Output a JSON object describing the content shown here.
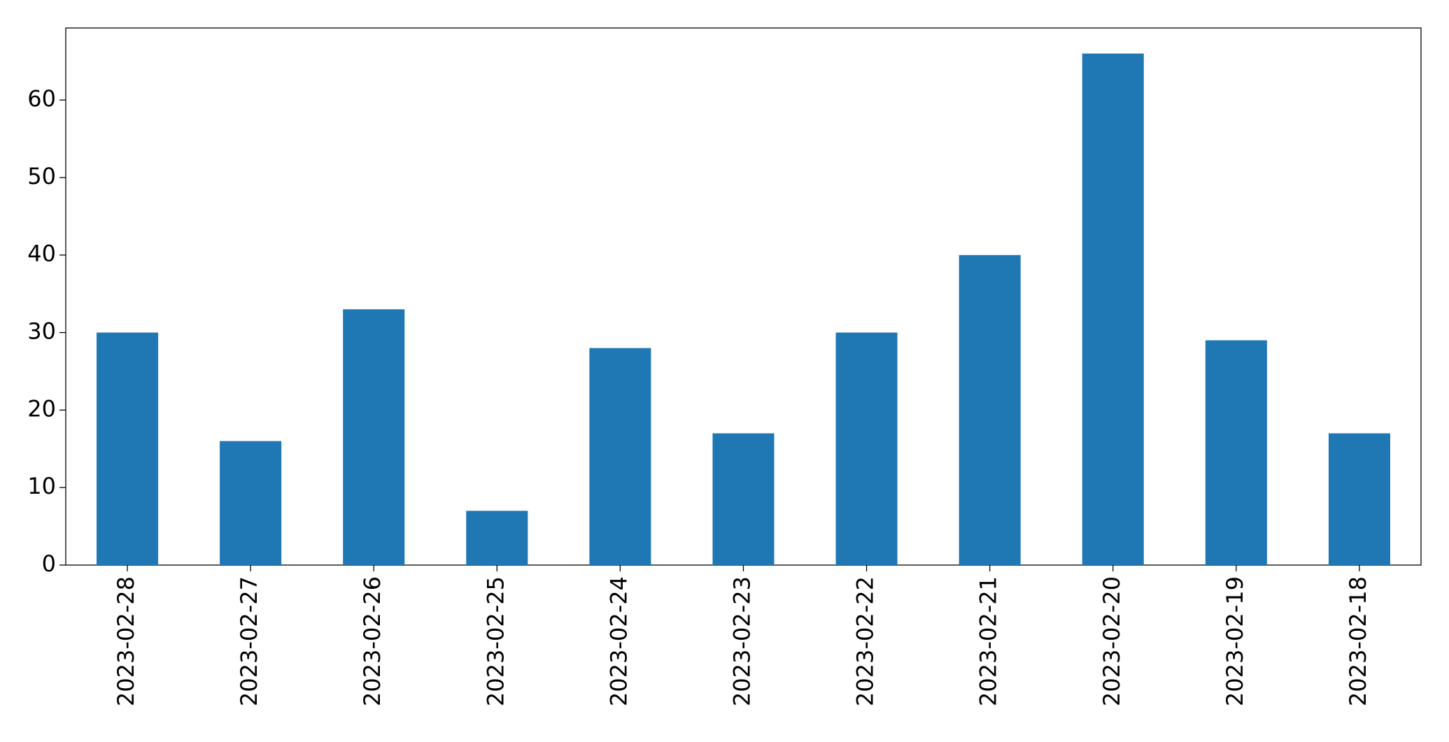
{
  "chart_data": {
    "type": "bar",
    "categories": [
      "2023-02-28",
      "2023-02-27",
      "2023-02-26",
      "2023-02-25",
      "2023-02-24",
      "2023-02-23",
      "2023-02-22",
      "2023-02-21",
      "2023-02-20",
      "2023-02-19",
      "2023-02-18"
    ],
    "values": [
      30,
      16,
      33,
      7,
      28,
      17,
      30,
      40,
      66,
      29,
      17
    ],
    "color": "#1f77b4",
    "ylim": [
      0,
      69.3
    ],
    "yticks": [
      0,
      10,
      20,
      30,
      40,
      50,
      60
    ],
    "grid": false
  }
}
